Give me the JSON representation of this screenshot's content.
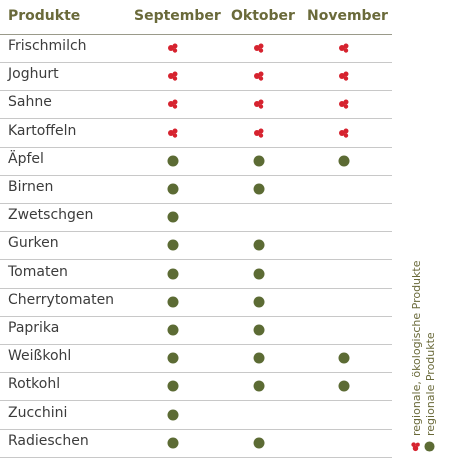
{
  "header": {
    "products": "Produkte",
    "september": "September",
    "oktober": "Oktober",
    "november": "November"
  },
  "rows": [
    {
      "name": "Frischmilch",
      "september": "organic",
      "oktober": "organic",
      "november": "organic"
    },
    {
      "name": "Joghurt",
      "september": "organic",
      "oktober": "organic",
      "november": "organic"
    },
    {
      "name": "Sahne",
      "september": "organic",
      "oktober": "organic",
      "november": "organic"
    },
    {
      "name": "Kartoffeln",
      "september": "organic",
      "oktober": "organic",
      "november": "organic"
    },
    {
      "name": "Äpfel",
      "september": "regional",
      "oktober": "regional",
      "november": "regional"
    },
    {
      "name": "Birnen",
      "september": "regional",
      "oktober": "regional",
      "november": ""
    },
    {
      "name": "Zwetschgen",
      "september": "regional",
      "oktober": "",
      "november": ""
    },
    {
      "name": "Gurken",
      "september": "regional",
      "oktober": "regional",
      "november": ""
    },
    {
      "name": "Tomaten",
      "september": "regional",
      "oktober": "regional",
      "november": ""
    },
    {
      "name": "Cherrytomaten",
      "september": "regional",
      "oktober": "regional",
      "november": ""
    },
    {
      "name": "Paprika",
      "september": "regional",
      "oktober": "regional",
      "november": ""
    },
    {
      "name": "Weißkohl",
      "september": "regional",
      "oktober": "regional",
      "november": "regional"
    },
    {
      "name": "Rotkohl",
      "september": "regional",
      "oktober": "regional",
      "november": "regional"
    },
    {
      "name": "Zucchini",
      "september": "regional",
      "oktober": "",
      "november": ""
    },
    {
      "name": "Radieschen",
      "september": "regional",
      "oktober": "regional",
      "november": ""
    }
  ],
  "legend": {
    "organic": "regionale, ökologische Produkte",
    "regional": "regionale Produkte"
  },
  "colors": {
    "organic_icon": "#d6232f",
    "regional_dot": "#5c6b34",
    "header_text": "#6a6a3a"
  },
  "icons": {
    "organic": "organic-leaf-icon",
    "regional": "regional-dot-icon"
  }
}
